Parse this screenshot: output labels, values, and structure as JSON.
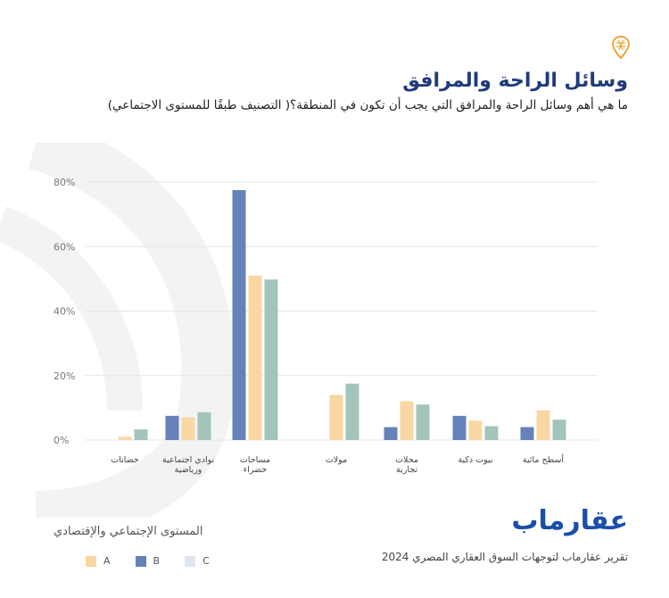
{
  "header": {
    "title": "وسائل الراحة والمرافق",
    "subtitle": "ما هي أهم وسائل الراحة والمرافق التي يجب أن تكون في المنطقة؟( التصنيف طبقًا للمستوى الاجتماعي)"
  },
  "legend": {
    "title": "المستوى الإجتماعي والإقتصادي",
    "items": [
      {
        "label": "A",
        "color": "#f9d7a2"
      },
      {
        "label": "B",
        "color": "#6583b8"
      },
      {
        "label": "C",
        "color": "#dfe6f0"
      }
    ]
  },
  "brand": {
    "name": "عقارماب",
    "report": "تقرير عقارماب لتوجهات السوق العقاري المصري 2024"
  },
  "chart_data": {
    "type": "bar",
    "categories": [
      "حضانات",
      "نوادي اجتماعية ورياضية",
      "مساحات خضراء",
      "مولات",
      "محلات تجارية",
      "بيوت ذكية",
      "أسطح مائية"
    ],
    "series": [
      {
        "name": "B",
        "values": [
          0,
          7.5,
          77.5,
          0,
          4,
          7.5,
          4
        ],
        "color": "#6583b8"
      },
      {
        "name": "A",
        "values": [
          1,
          7,
          51,
          14,
          12,
          6,
          9.2
        ],
        "color": "#f9d7a2"
      },
      {
        "name": "C",
        "values": [
          3.3,
          8.6,
          49.8,
          17.5,
          11,
          4.3,
          6.3
        ],
        "color": "#a3c4bb"
      }
    ],
    "ylim": [
      0,
      80
    ],
    "yticks": [
      "0%",
      "20%",
      "40%",
      "60%",
      "80%"
    ],
    "grid": true
  }
}
